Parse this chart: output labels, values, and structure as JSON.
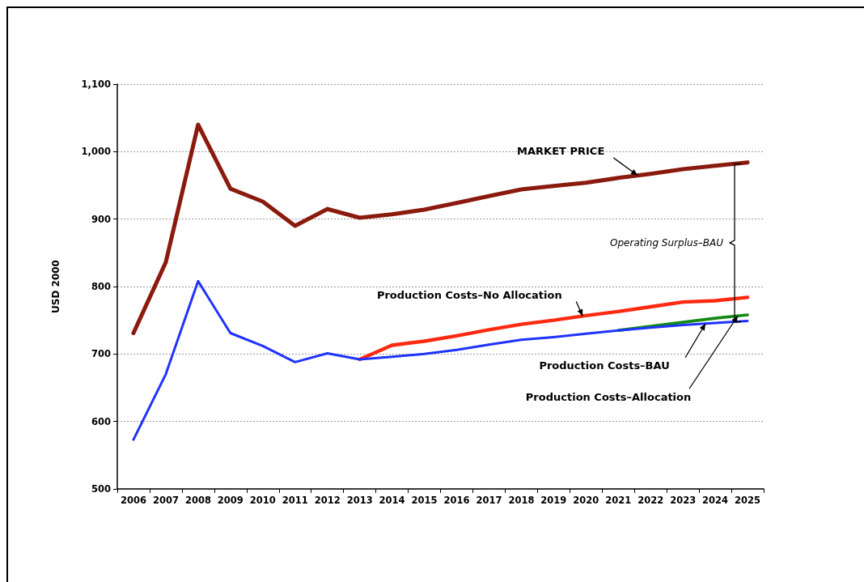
{
  "chart_data": {
    "type": "line",
    "ylabel": "USD 2000",
    "categories": [
      "2006",
      "2007",
      "2008",
      "2009",
      "2010",
      "2011",
      "2012",
      "2013",
      "2014",
      "2015",
      "2016",
      "2017",
      "2018",
      "2019",
      "2020",
      "2021",
      "2022",
      "2023",
      "2024",
      "2025"
    ],
    "series": [
      {
        "name": "MARKET PRICE",
        "color": "#8b1a0e",
        "values": [
          731,
          836,
          1040,
          945,
          926,
          890,
          915,
          902,
          907,
          914,
          924,
          934,
          944,
          949,
          954,
          961,
          967,
          974,
          979,
          984
        ]
      },
      {
        "name": "Production Costs–No Allocation",
        "color": "#ff2a10",
        "values": [
          null,
          null,
          null,
          null,
          null,
          null,
          null,
          692,
          713,
          719,
          727,
          736,
          744,
          750,
          757,
          763,
          770,
          777,
          779,
          784
        ]
      },
      {
        "name": "Production Costs–Allocation",
        "color": "#138a13",
        "values": [
          null,
          null,
          null,
          null,
          null,
          null,
          null,
          null,
          null,
          null,
          null,
          null,
          null,
          null,
          null,
          735,
          741,
          747,
          753,
          758
        ]
      },
      {
        "name": "Production Costs–BAU",
        "color": "#1f33ff",
        "values": [
          573,
          670,
          808,
          731,
          712,
          688,
          701,
          692,
          696,
          700,
          706,
          714,
          721,
          725,
          730,
          735,
          739,
          743,
          746,
          749
        ]
      }
    ],
    "annotations": [
      "Operating Surplus–BAU"
    ],
    "ylim": [
      500,
      1100
    ],
    "yticks": [
      500,
      600,
      700,
      800,
      900,
      {
        "value": 1000,
        "label": "1,000"
      },
      {
        "value": 1100,
        "label": "1,100"
      }
    ],
    "grid": "y",
    "legend": false,
    "marker": "none",
    "line_style": "solid"
  }
}
